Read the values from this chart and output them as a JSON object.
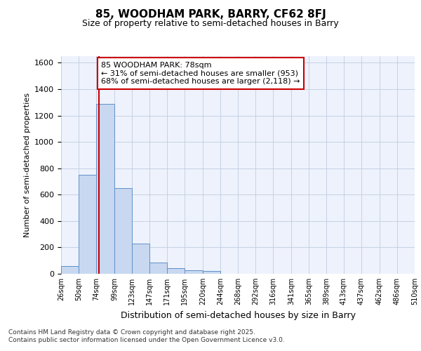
{
  "title": "85, WOODHAM PARK, BARRY, CF62 8FJ",
  "subtitle": "Size of property relative to semi-detached houses in Barry",
  "xlabel": "Distribution of semi-detached houses by size in Barry",
  "ylabel": "Number of semi-detached properties",
  "footer_line1": "Contains HM Land Registry data © Crown copyright and database right 2025.",
  "footer_line2": "Contains public sector information licensed under the Open Government Licence v3.0.",
  "annotation_title": "85 WOODHAM PARK: 78sqm",
  "annotation_line2": "← 31% of semi-detached houses are smaller (953)",
  "annotation_line3": "68% of semi-detached houses are larger (2,118) →",
  "property_line": 78,
  "bar_edges": [
    26,
    50,
    74,
    99,
    123,
    147,
    171,
    195,
    220,
    244,
    268,
    292,
    316,
    341,
    365,
    389,
    413,
    437,
    462,
    486,
    510
  ],
  "bar_heights": [
    60,
    750,
    1290,
    650,
    230,
    85,
    45,
    25,
    20,
    0,
    0,
    0,
    0,
    0,
    0,
    0,
    0,
    0,
    0,
    0
  ],
  "bar_color": "#c8d8f0",
  "bar_edge_color": "#6090c8",
  "red_line_color": "#cc0000",
  "annotation_box_color": "#cc0000",
  "grid_color": "#c0cce0",
  "background_color": "#eef2fc",
  "ylim": [
    0,
    1650
  ],
  "yticks": [
    0,
    200,
    400,
    600,
    800,
    1000,
    1200,
    1400,
    1600
  ],
  "tick_labels": [
    "26sqm",
    "50sqm",
    "74sqm",
    "99sqm",
    "123sqm",
    "147sqm",
    "171sqm",
    "195sqm",
    "220sqm",
    "244sqm",
    "268sqm",
    "292sqm",
    "316sqm",
    "341sqm",
    "365sqm",
    "389sqm",
    "413sqm",
    "437sqm",
    "462sqm",
    "486sqm",
    "510sqm"
  ]
}
